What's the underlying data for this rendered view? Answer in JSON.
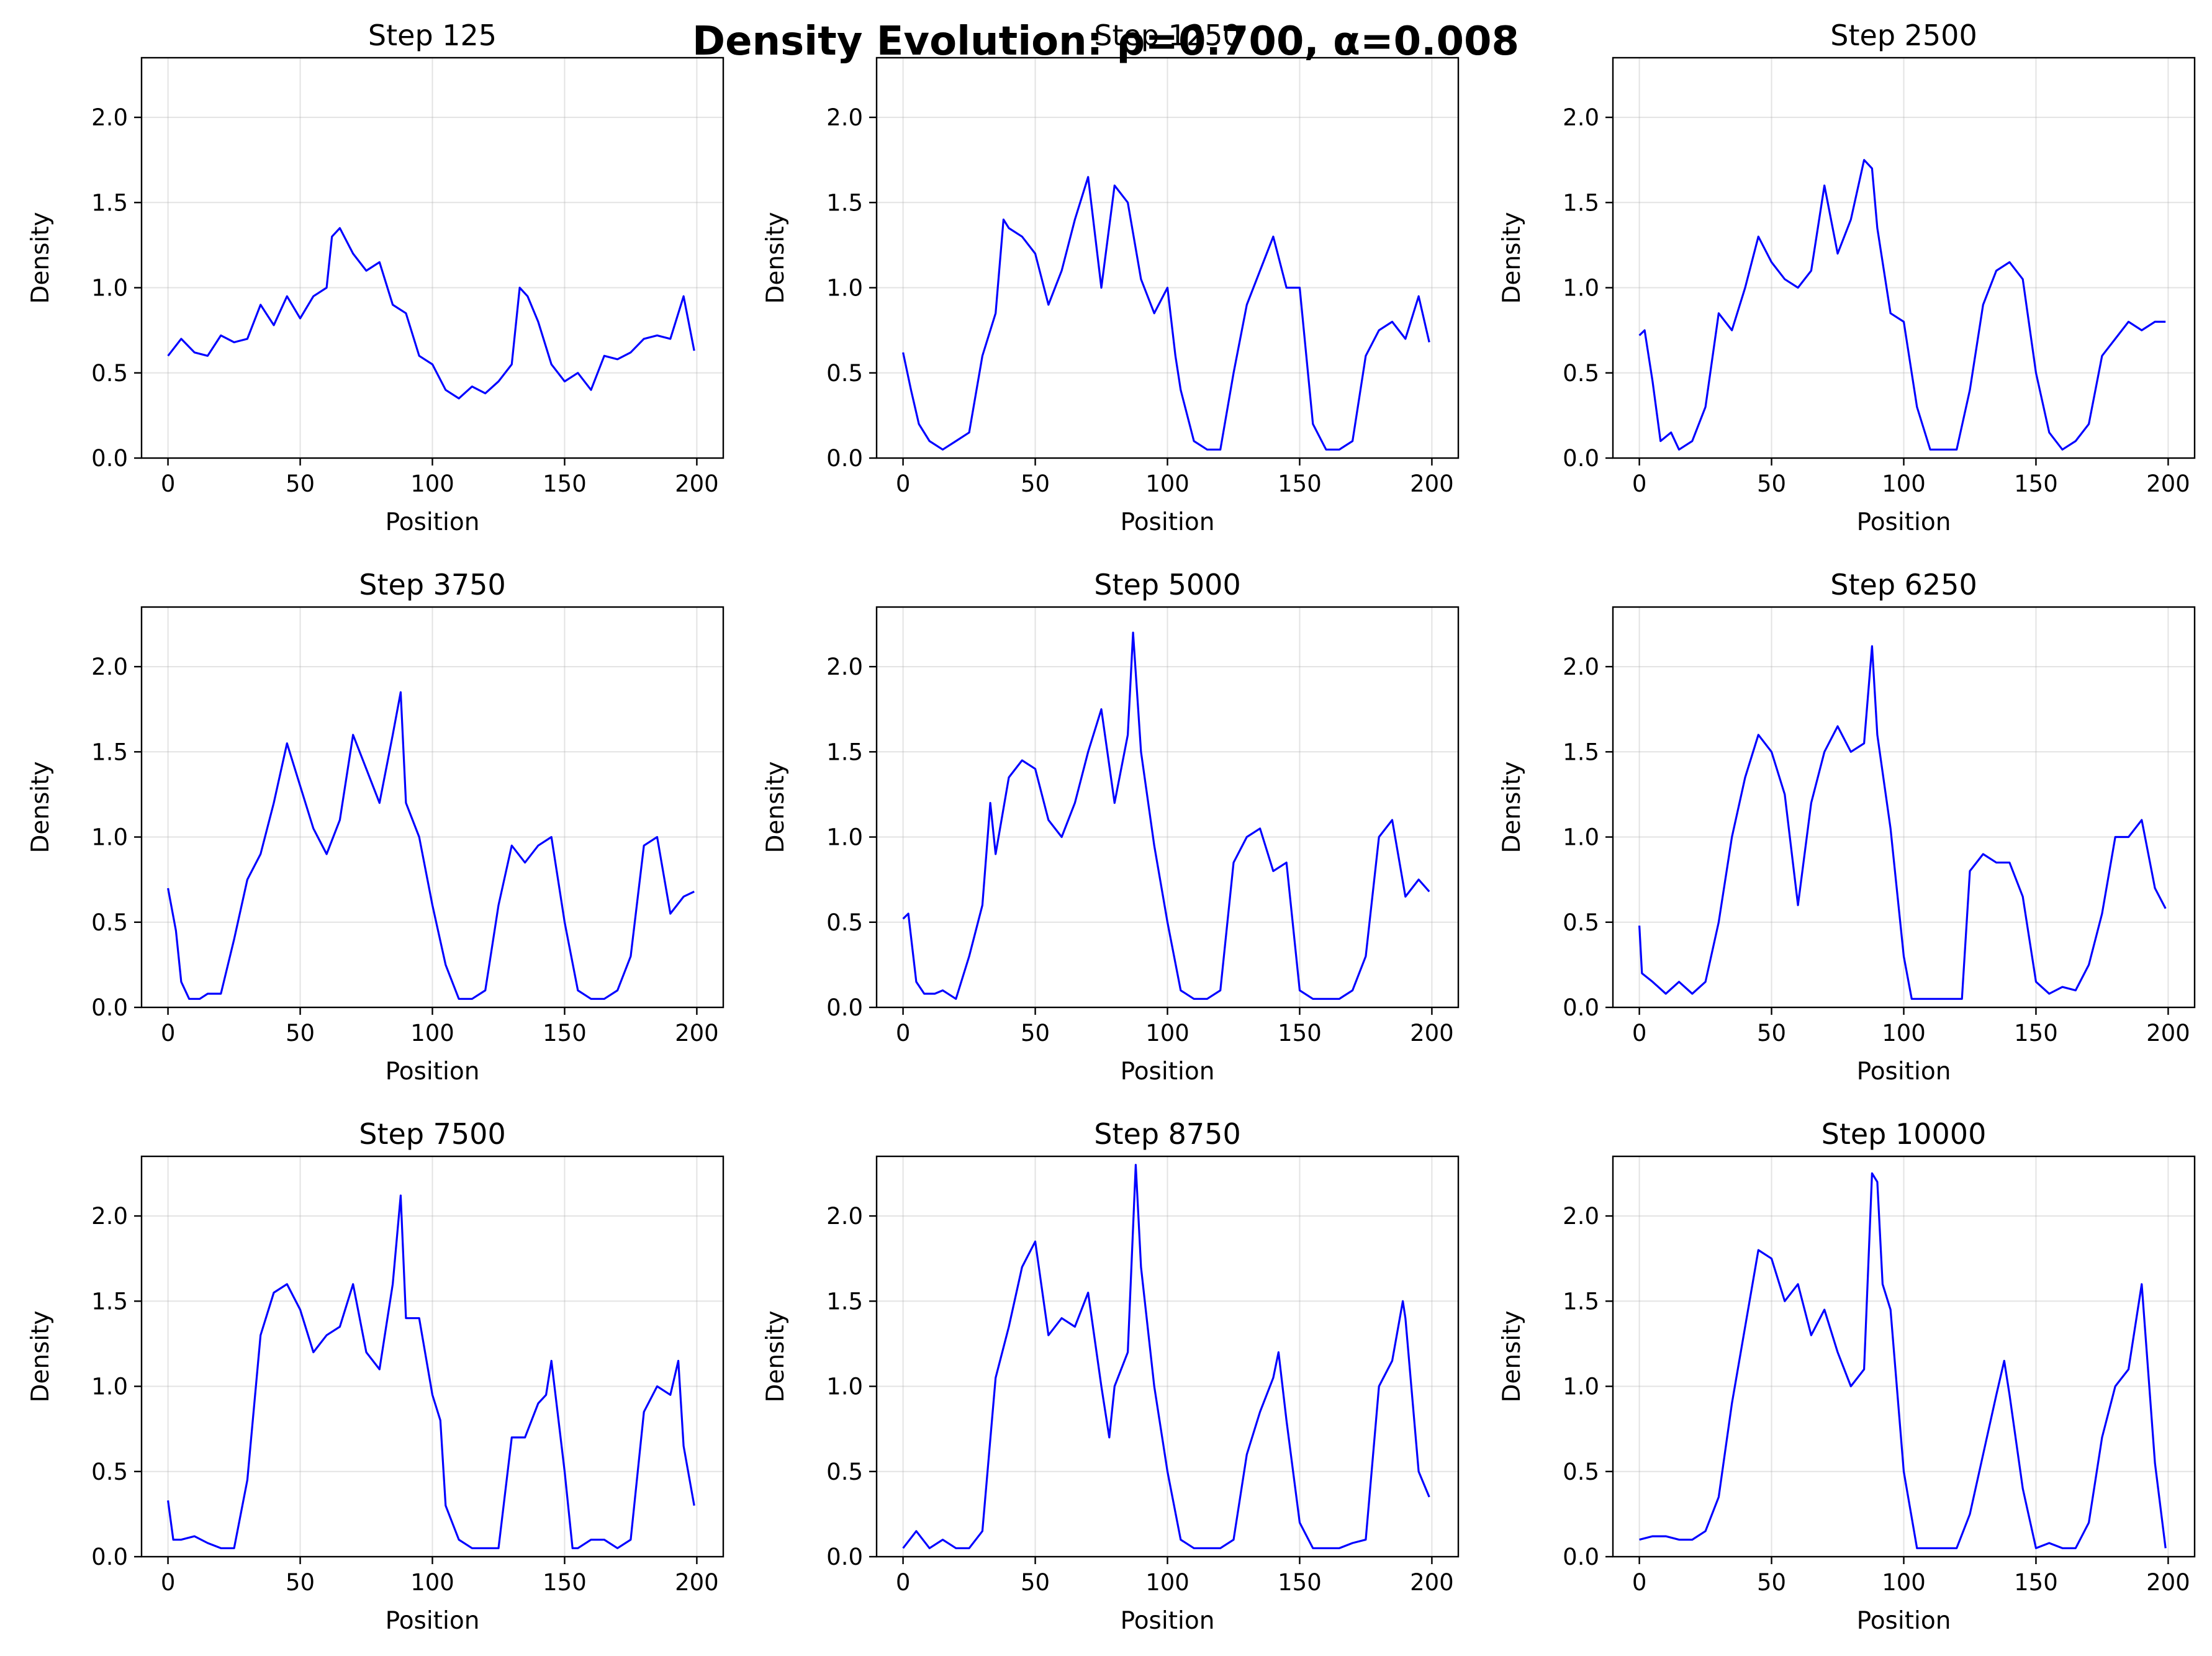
{
  "figure": {
    "suptitle": "Density Evolution: ρ=0.700, α=0.008",
    "line_color": "#0000ff"
  },
  "chart_data": [
    {
      "type": "line",
      "title": "Step 125",
      "xlabel": "Position",
      "ylabel": "Density",
      "xlim": [
        -10,
        210
      ],
      "ylim": [
        0,
        2.35
      ],
      "xticks": [
        0,
        50,
        100,
        150,
        200
      ],
      "yticks": [
        0,
        0.5,
        1,
        1.5,
        2
      ],
      "ytick_labels": [
        "0.0",
        "0.5",
        "1.0",
        "1.5",
        "2.0"
      ],
      "grid": true,
      "x": [
        0,
        5,
        10,
        15,
        20,
        25,
        30,
        35,
        40,
        45,
        50,
        55,
        60,
        62,
        65,
        70,
        75,
        80,
        85,
        90,
        95,
        100,
        105,
        110,
        115,
        120,
        125,
        130,
        133,
        136,
        140,
        145,
        150,
        155,
        160,
        165,
        170,
        175,
        180,
        185,
        190,
        195,
        199
      ],
      "values": [
        0.6,
        0.7,
        0.62,
        0.6,
        0.72,
        0.68,
        0.7,
        0.9,
        0.78,
        0.95,
        0.82,
        0.95,
        1.0,
        1.3,
        1.35,
        1.2,
        1.1,
        1.15,
        0.9,
        0.85,
        0.6,
        0.55,
        0.4,
        0.35,
        0.42,
        0.38,
        0.45,
        0.55,
        1.0,
        0.95,
        0.8,
        0.55,
        0.45,
        0.5,
        0.4,
        0.6,
        0.58,
        0.62,
        0.7,
        0.72,
        0.7,
        0.95,
        0.63
      ]
    },
    {
      "type": "line",
      "title": "Step 1250",
      "xlabel": "Position",
      "ylabel": "Density",
      "xlim": [
        -10,
        210
      ],
      "ylim": [
        0,
        2.35
      ],
      "xticks": [
        0,
        50,
        100,
        150,
        200
      ],
      "yticks": [
        0,
        0.5,
        1,
        1.5,
        2
      ],
      "ytick_labels": [
        "0.0",
        "0.5",
        "1.0",
        "1.5",
        "2.0"
      ],
      "grid": true,
      "x": [
        0,
        3,
        6,
        10,
        15,
        20,
        25,
        30,
        35,
        38,
        40,
        45,
        50,
        55,
        60,
        65,
        70,
        75,
        80,
        85,
        90,
        95,
        100,
        103,
        105,
        110,
        115,
        120,
        125,
        130,
        135,
        140,
        145,
        150,
        155,
        160,
        165,
        170,
        175,
        180,
        185,
        190,
        195,
        199
      ],
      "values": [
        0.62,
        0.4,
        0.2,
        0.1,
        0.05,
        0.1,
        0.15,
        0.6,
        0.85,
        1.4,
        1.35,
        1.3,
        1.2,
        0.9,
        1.1,
        1.4,
        1.65,
        1.0,
        1.6,
        1.5,
        1.05,
        0.85,
        1.0,
        0.6,
        0.4,
        0.1,
        0.05,
        0.05,
        0.5,
        0.9,
        1.1,
        1.3,
        1.0,
        1.0,
        0.2,
        0.05,
        0.05,
        0.1,
        0.6,
        0.75,
        0.8,
        0.7,
        0.95,
        0.68
      ]
    },
    {
      "type": "line",
      "title": "Step 2500",
      "xlabel": "Position",
      "ylabel": "Density",
      "xlim": [
        -10,
        210
      ],
      "ylim": [
        0,
        2.35
      ],
      "xticks": [
        0,
        50,
        100,
        150,
        200
      ],
      "yticks": [
        0,
        0.5,
        1,
        1.5,
        2
      ],
      "ytick_labels": [
        "0.0",
        "0.5",
        "1.0",
        "1.5",
        "2.0"
      ],
      "grid": true,
      "x": [
        0,
        2,
        5,
        8,
        12,
        15,
        20,
        25,
        30,
        35,
        40,
        45,
        50,
        55,
        60,
        65,
        70,
        75,
        80,
        85,
        88,
        90,
        95,
        100,
        105,
        110,
        115,
        120,
        125,
        130,
        135,
        140,
        145,
        150,
        155,
        160,
        165,
        170,
        175,
        180,
        185,
        190,
        195,
        199
      ],
      "values": [
        0.72,
        0.75,
        0.45,
        0.1,
        0.15,
        0.05,
        0.1,
        0.3,
        0.85,
        0.75,
        1.0,
        1.3,
        1.15,
        1.05,
        1.0,
        1.1,
        1.6,
        1.2,
        1.4,
        1.75,
        1.7,
        1.35,
        0.85,
        0.8,
        0.3,
        0.05,
        0.05,
        0.05,
        0.4,
        0.9,
        1.1,
        1.15,
        1.05,
        0.5,
        0.15,
        0.05,
        0.1,
        0.2,
        0.6,
        0.7,
        0.8,
        0.75,
        0.8,
        0.8
      ]
    },
    {
      "type": "line",
      "title": "Step 3750",
      "xlabel": "Position",
      "ylabel": "Density",
      "xlim": [
        -10,
        210
      ],
      "ylim": [
        0,
        2.35
      ],
      "xticks": [
        0,
        50,
        100,
        150,
        200
      ],
      "yticks": [
        0,
        0.5,
        1,
        1.5,
        2
      ],
      "ytick_labels": [
        "0.0",
        "0.5",
        "1.0",
        "1.5",
        "2.0"
      ],
      "grid": true,
      "x": [
        0,
        3,
        5,
        8,
        12,
        15,
        20,
        25,
        30,
        35,
        40,
        45,
        50,
        55,
        60,
        65,
        70,
        75,
        80,
        85,
        88,
        90,
        95,
        100,
        105,
        110,
        115,
        120,
        125,
        130,
        135,
        140,
        145,
        150,
        155,
        160,
        165,
        170,
        175,
        180,
        185,
        190,
        195,
        199
      ],
      "values": [
        0.7,
        0.45,
        0.15,
        0.05,
        0.05,
        0.08,
        0.08,
        0.4,
        0.75,
        0.9,
        1.2,
        1.55,
        1.3,
        1.05,
        0.9,
        1.1,
        1.6,
        1.4,
        1.2,
        1.6,
        1.85,
        1.2,
        1.0,
        0.6,
        0.25,
        0.05,
        0.05,
        0.1,
        0.6,
        0.95,
        0.85,
        0.95,
        1.0,
        0.5,
        0.1,
        0.05,
        0.05,
        0.1,
        0.3,
        0.95,
        1.0,
        0.55,
        0.65,
        0.68
      ]
    },
    {
      "type": "line",
      "title": "Step 5000",
      "xlabel": "Position",
      "ylabel": "Density",
      "xlim": [
        -10,
        210
      ],
      "ylim": [
        0,
        2.35
      ],
      "xticks": [
        0,
        50,
        100,
        150,
        200
      ],
      "yticks": [
        0,
        0.5,
        1,
        1.5,
        2
      ],
      "ytick_labels": [
        "0.0",
        "0.5",
        "1.0",
        "1.5",
        "2.0"
      ],
      "grid": true,
      "x": [
        0,
        2,
        5,
        8,
        12,
        15,
        20,
        25,
        30,
        33,
        35,
        40,
        45,
        50,
        55,
        60,
        65,
        70,
        75,
        80,
        85,
        87,
        90,
        95,
        100,
        105,
        110,
        115,
        120,
        125,
        130,
        135,
        140,
        145,
        150,
        155,
        160,
        165,
        170,
        175,
        180,
        185,
        190,
        195,
        199
      ],
      "values": [
        0.52,
        0.55,
        0.15,
        0.08,
        0.08,
        0.1,
        0.05,
        0.3,
        0.6,
        1.2,
        0.9,
        1.35,
        1.45,
        1.4,
        1.1,
        1.0,
        1.2,
        1.5,
        1.75,
        1.2,
        1.6,
        2.2,
        1.5,
        0.95,
        0.5,
        0.1,
        0.05,
        0.05,
        0.1,
        0.85,
        1.0,
        1.05,
        0.8,
        0.85,
        0.1,
        0.05,
        0.05,
        0.05,
        0.1,
        0.3,
        1.0,
        1.1,
        0.65,
        0.75,
        0.68
      ]
    },
    {
      "type": "line",
      "title": "Step 6250",
      "xlabel": "Position",
      "ylabel": "Density",
      "xlim": [
        -10,
        210
      ],
      "ylim": [
        0,
        2.35
      ],
      "xticks": [
        0,
        50,
        100,
        150,
        200
      ],
      "yticks": [
        0,
        0.5,
        1,
        1.5,
        2
      ],
      "ytick_labels": [
        "0.0",
        "0.5",
        "1.0",
        "1.5",
        "2.0"
      ],
      "grid": true,
      "x": [
        0,
        1,
        5,
        10,
        15,
        20,
        25,
        30,
        35,
        40,
        45,
        50,
        55,
        60,
        65,
        70,
        75,
        80,
        85,
        88,
        90,
        95,
        100,
        103,
        105,
        110,
        115,
        120,
        122,
        125,
        130,
        135,
        140,
        145,
        150,
        155,
        160,
        165,
        170,
        175,
        180,
        185,
        190,
        195,
        199
      ],
      "values": [
        0.48,
        0.2,
        0.15,
        0.08,
        0.15,
        0.08,
        0.15,
        0.5,
        1.0,
        1.35,
        1.6,
        1.5,
        1.25,
        0.6,
        1.2,
        1.5,
        1.65,
        1.5,
        1.55,
        2.12,
        1.6,
        1.05,
        0.3,
        0.05,
        0.05,
        0.05,
        0.05,
        0.05,
        0.05,
        0.8,
        0.9,
        0.85,
        0.85,
        0.65,
        0.15,
        0.08,
        0.12,
        0.1,
        0.25,
        0.55,
        1.0,
        1.0,
        1.1,
        0.7,
        0.58
      ]
    },
    {
      "type": "line",
      "title": "Step 7500",
      "xlabel": "Position",
      "ylabel": "Density",
      "xlim": [
        -10,
        210
      ],
      "ylim": [
        0,
        2.35
      ],
      "xticks": [
        0,
        50,
        100,
        150,
        200
      ],
      "yticks": [
        0,
        0.5,
        1,
        1.5,
        2
      ],
      "ytick_labels": [
        "0.0",
        "0.5",
        "1.0",
        "1.5",
        "2.0"
      ],
      "grid": true,
      "x": [
        0,
        2,
        5,
        10,
        15,
        20,
        25,
        30,
        35,
        40,
        45,
        50,
        55,
        60,
        65,
        70,
        75,
        80,
        85,
        88,
        90,
        95,
        100,
        103,
        105,
        110,
        115,
        120,
        125,
        130,
        135,
        140,
        143,
        145,
        150,
        153,
        155,
        160,
        165,
        170,
        175,
        180,
        185,
        190,
        193,
        195,
        199
      ],
      "values": [
        0.33,
        0.1,
        0.1,
        0.12,
        0.08,
        0.05,
        0.05,
        0.45,
        1.3,
        1.55,
        1.6,
        1.45,
        1.2,
        1.3,
        1.35,
        1.6,
        1.2,
        1.1,
        1.6,
        2.12,
        1.4,
        1.4,
        0.95,
        0.8,
        0.3,
        0.1,
        0.05,
        0.05,
        0.05,
        0.7,
        0.7,
        0.9,
        0.95,
        1.15,
        0.5,
        0.05,
        0.05,
        0.1,
        0.1,
        0.05,
        0.1,
        0.85,
        1.0,
        0.95,
        1.15,
        0.65,
        0.3
      ]
    },
    {
      "type": "line",
      "title": "Step 8750",
      "xlabel": "Position",
      "ylabel": "Density",
      "xlim": [
        -10,
        210
      ],
      "ylim": [
        0,
        2.35
      ],
      "xticks": [
        0,
        50,
        100,
        150,
        200
      ],
      "yticks": [
        0,
        0.5,
        1,
        1.5,
        2
      ],
      "ytick_labels": [
        "0.0",
        "0.5",
        "1.0",
        "1.5",
        "2.0"
      ],
      "grid": true,
      "x": [
        0,
        5,
        10,
        15,
        20,
        25,
        30,
        35,
        40,
        45,
        50,
        55,
        60,
        65,
        70,
        75,
        78,
        80,
        85,
        88,
        90,
        95,
        100,
        105,
        110,
        115,
        120,
        125,
        130,
        135,
        140,
        142,
        145,
        150,
        155,
        160,
        165,
        170,
        175,
        180,
        185,
        189,
        190,
        195,
        199
      ],
      "values": [
        0.05,
        0.15,
        0.05,
        0.1,
        0.05,
        0.05,
        0.15,
        1.05,
        1.35,
        1.7,
        1.85,
        1.3,
        1.4,
        1.35,
        1.55,
        1.0,
        0.7,
        1.0,
        1.2,
        2.3,
        1.7,
        1.0,
        0.5,
        0.1,
        0.05,
        0.05,
        0.05,
        0.1,
        0.6,
        0.85,
        1.05,
        1.2,
        0.8,
        0.2,
        0.05,
        0.05,
        0.05,
        0.08,
        0.1,
        1.0,
        1.15,
        1.5,
        1.4,
        0.5,
        0.35
      ]
    },
    {
      "type": "line",
      "title": "Step 10000",
      "xlabel": "Position",
      "ylabel": "Density",
      "xlim": [
        -10,
        210
      ],
      "ylim": [
        0,
        2.35
      ],
      "xticks": [
        0,
        50,
        100,
        150,
        200
      ],
      "yticks": [
        0,
        0.5,
        1,
        1.5,
        2
      ],
      "ytick_labels": [
        "0.0",
        "0.5",
        "1.0",
        "1.5",
        "2.0"
      ],
      "grid": true,
      "x": [
        0,
        5,
        10,
        15,
        20,
        25,
        30,
        35,
        40,
        45,
        50,
        55,
        60,
        65,
        70,
        75,
        80,
        85,
        88,
        90,
        92,
        95,
        100,
        105,
        110,
        115,
        120,
        125,
        130,
        135,
        138,
        140,
        145,
        150,
        155,
        160,
        165,
        170,
        175,
        180,
        185,
        190,
        195,
        199
      ],
      "values": [
        0.1,
        0.12,
        0.12,
        0.1,
        0.1,
        0.15,
        0.35,
        0.9,
        1.35,
        1.8,
        1.75,
        1.5,
        1.6,
        1.3,
        1.45,
        1.2,
        1.0,
        1.1,
        2.25,
        2.2,
        1.6,
        1.45,
        0.5,
        0.05,
        0.05,
        0.05,
        0.05,
        0.25,
        0.6,
        0.95,
        1.15,
        0.95,
        0.4,
        0.05,
        0.08,
        0.05,
        0.05,
        0.2,
        0.7,
        1.0,
        1.1,
        1.6,
        0.55,
        0.05
      ]
    }
  ]
}
